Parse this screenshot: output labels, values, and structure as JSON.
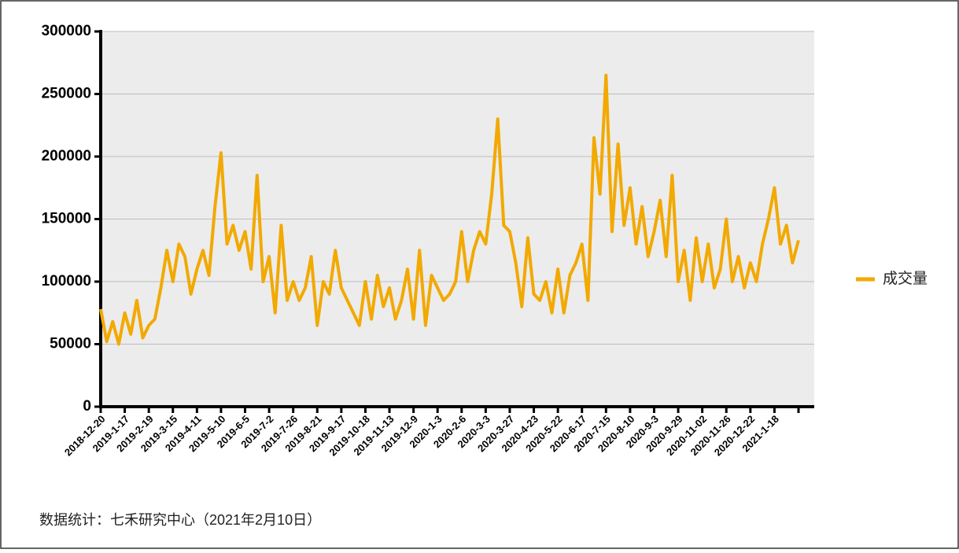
{
  "chart_data": {
    "type": "line",
    "categories": [
      "2018-12-20",
      null,
      null,
      null,
      "2019-1-17",
      null,
      null,
      null,
      "2019-2-19",
      null,
      null,
      null,
      "2019-3-15",
      null,
      null,
      null,
      "2019-4-11",
      null,
      null,
      null,
      "2019-5-10",
      null,
      null,
      null,
      "2019-6-5",
      null,
      null,
      null,
      "2019-7-2",
      null,
      null,
      null,
      "2019-7-26",
      null,
      null,
      null,
      "2019-8-21",
      null,
      null,
      null,
      "2019-9-17",
      null,
      null,
      null,
      "2019-10-18",
      null,
      null,
      null,
      "2019-11-13",
      null,
      null,
      null,
      "2019-12-9",
      null,
      null,
      null,
      "2020-1-3",
      null,
      null,
      null,
      "2020-2-6",
      null,
      null,
      null,
      "2020-3-3",
      null,
      null,
      null,
      "2020-3-27",
      null,
      null,
      null,
      "2020-4-23",
      null,
      null,
      null,
      "2020-5-22",
      null,
      null,
      null,
      "2020-6-17",
      null,
      null,
      null,
      "2020-7-15",
      null,
      null,
      null,
      "2020-8-10",
      null,
      null,
      null,
      "2020-9-3",
      null,
      null,
      null,
      "2020-9-29",
      null,
      null,
      null,
      "2020-11-02",
      null,
      null,
      null,
      "2020-11-26",
      null,
      null,
      null,
      "2020-12-22",
      null,
      null,
      null,
      "2021-1-18",
      null,
      null,
      null,
      null
    ],
    "series": [
      {
        "name": "成交量",
        "color": "#f2a900",
        "values": [
          78000,
          52000,
          68000,
          50000,
          75000,
          58000,
          85000,
          55000,
          65000,
          70000,
          95000,
          125000,
          100000,
          130000,
          120000,
          90000,
          110000,
          125000,
          105000,
          160000,
          203000,
          130000,
          145000,
          125000,
          140000,
          110000,
          185000,
          100000,
          120000,
          75000,
          145000,
          85000,
          100000,
          85000,
          95000,
          120000,
          65000,
          100000,
          90000,
          125000,
          95000,
          85000,
          75000,
          65000,
          100000,
          70000,
          105000,
          80000,
          95000,
          70000,
          85000,
          110000,
          70000,
          125000,
          65000,
          105000,
          95000,
          85000,
          90000,
          100000,
          140000,
          100000,
          125000,
          140000,
          130000,
          170000,
          230000,
          145000,
          140000,
          115000,
          80000,
          135000,
          90000,
          85000,
          100000,
          75000,
          110000,
          75000,
          105000,
          115000,
          130000,
          85000,
          215000,
          170000,
          265000,
          140000,
          210000,
          145000,
          175000,
          130000,
          160000,
          120000,
          140000,
          165000,
          120000,
          185000,
          100000,
          125000,
          85000,
          135000,
          100000,
          130000,
          95000,
          110000,
          150000,
          100000,
          120000,
          95000,
          115000,
          100000,
          130000,
          150000,
          175000,
          130000,
          145000,
          115000,
          133000
        ]
      }
    ],
    "ylim": [
      0,
      300000
    ],
    "yticks": [
      0,
      50000,
      100000,
      150000,
      200000,
      250000,
      300000
    ],
    "grid": true,
    "legend": "right",
    "source": "数据统计：七禾研究中心（2021年2月10日）"
  }
}
